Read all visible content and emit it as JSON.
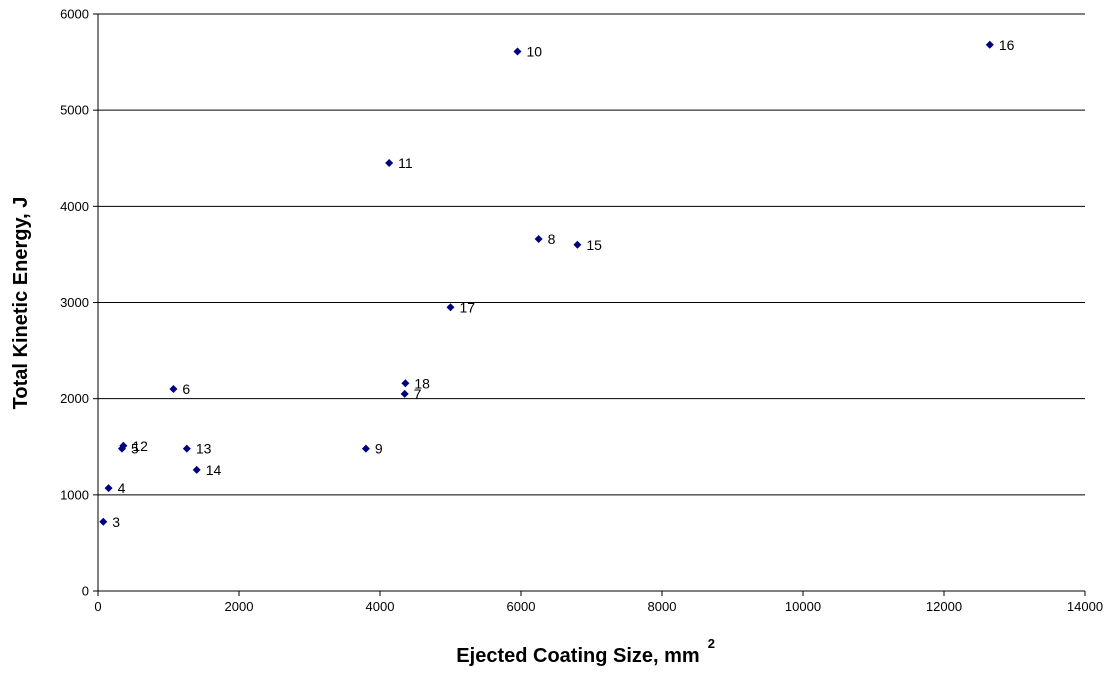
{
  "chart_data": {
    "type": "scatter",
    "xlabel": "Ejected Coating Size, mm",
    "xlabel_superscript": "2",
    "ylabel": "Total Kinetic Energy, J",
    "xlim": [
      0,
      14000
    ],
    "ylim": [
      0,
      6000
    ],
    "x_ticks": [
      "0",
      "2000",
      "4000",
      "6000",
      "8000",
      "10000",
      "12000",
      "14000"
    ],
    "y_ticks": [
      "0",
      "1000",
      "2000",
      "3000",
      "4000",
      "5000",
      "6000"
    ],
    "grid": "horizontal",
    "marker_color": "#000080",
    "points": [
      {
        "label": "3",
        "x": 75,
        "y": 720
      },
      {
        "label": "4",
        "x": 150,
        "y": 1070
      },
      {
        "label": "5",
        "x": 340,
        "y": 1480
      },
      {
        "label": "12",
        "x": 360,
        "y": 1510
      },
      {
        "label": "6",
        "x": 1070,
        "y": 2100
      },
      {
        "label": "13",
        "x": 1260,
        "y": 1480
      },
      {
        "label": "14",
        "x": 1400,
        "y": 1260
      },
      {
        "label": "9",
        "x": 3800,
        "y": 1480
      },
      {
        "label": "7",
        "x": 4350,
        "y": 2050
      },
      {
        "label": "18",
        "x": 4360,
        "y": 2160
      },
      {
        "label": "11",
        "x": 4130,
        "y": 4450
      },
      {
        "label": "17",
        "x": 5000,
        "y": 2950
      },
      {
        "label": "10",
        "x": 5950,
        "y": 5610
      },
      {
        "label": "8",
        "x": 6250,
        "y": 3660
      },
      {
        "label": "15",
        "x": 6800,
        "y": 3600
      },
      {
        "label": "16",
        "x": 12650,
        "y": 5680
      }
    ]
  }
}
